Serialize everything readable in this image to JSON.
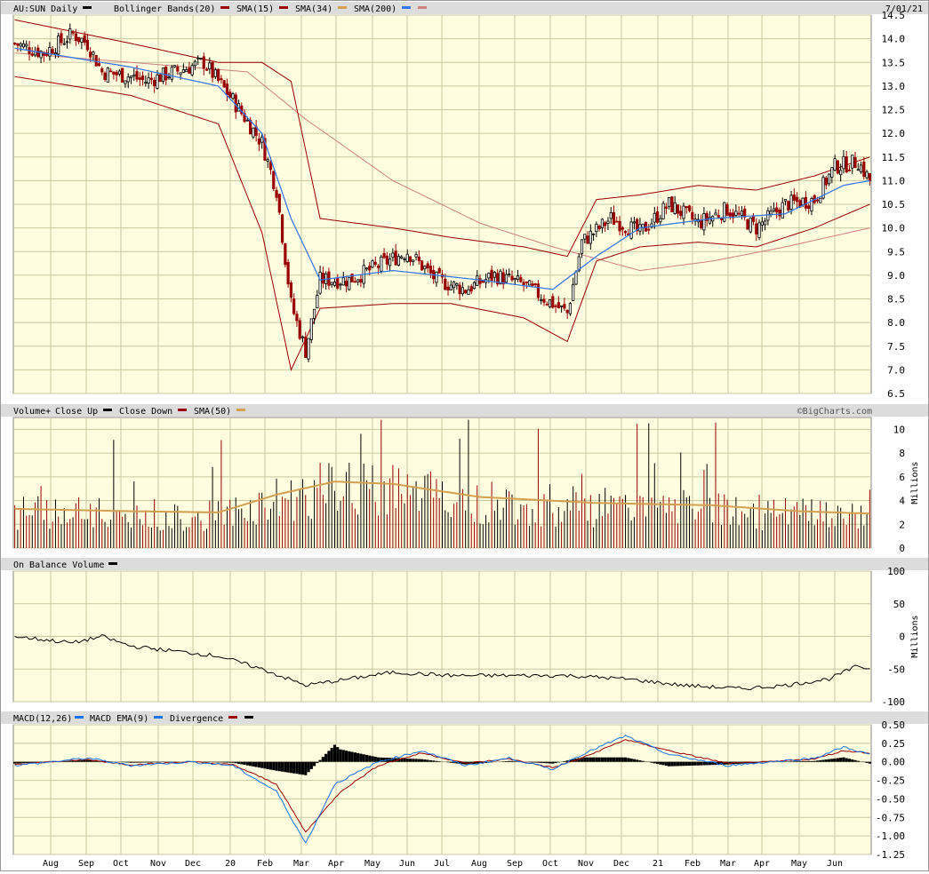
{
  "colors": {
    "plot_bg": "#fffde0",
    "header_bg": "#dcdcdc",
    "grid": "#c8c8a0",
    "up_candle": "#000000",
    "down_candle": "#990000",
    "bollinger": "#990000",
    "sma15": "#990000",
    "sma34": "#d4a050",
    "sma200": "#3377ee",
    "sma200_price": "#d08080",
    "vol_sma": "#d4a050",
    "obv": "#000000",
    "macd": "#1a73e8",
    "macd_ema": "#990000",
    "divergence": "#000000"
  },
  "price_panel": {
    "title": "AU:SUN Daily",
    "date": "7/01/21",
    "legend": [
      {
        "label": "Bollinger Bands(20)",
        "color": "#990000"
      },
      {
        "label": "SMA(15)",
        "color": "#990000"
      },
      {
        "label": "SMA(34)",
        "color": "#d4a050"
      },
      {
        "label": "SMA(200)",
        "color": "#3377ee"
      },
      {
        "label": "",
        "color": "#d08080"
      }
    ]
  },
  "volume_panel": {
    "title": "Volume+",
    "legend": [
      {
        "label": "Close Up",
        "color": "#000000"
      },
      {
        "label": "Close Down",
        "color": "#990000"
      },
      {
        "label": "SMA(50)",
        "color": "#d4a050"
      }
    ],
    "credit": "©BigCharts.com",
    "unit": "Millions"
  },
  "obv_panel": {
    "title": "On Balance Volume",
    "unit": "Millions"
  },
  "macd_panel": {
    "title": "MACD(12,26)",
    "legend": [
      {
        "label": "MACD EMA(9)",
        "color": "#1a73e8"
      },
      {
        "label": "Divergence",
        "color": "#990000"
      },
      {
        "label": "",
        "color": "#000000"
      }
    ]
  },
  "x_axis": {
    "months": [
      "Aug",
      "Sep",
      "Oct",
      "Nov",
      "Dec",
      "20",
      "Feb",
      "Mar",
      "Apr",
      "May",
      "Jun",
      "Jul",
      "Aug",
      "Sep",
      "Oct",
      "Nov",
      "Dec",
      "21",
      "Feb",
      "Mar",
      "Apr",
      "May",
      "Jun"
    ]
  },
  "chart_data": [
    {
      "type": "candlestick",
      "title": "AU:SUN Daily",
      "ylim": [
        6.5,
        14.5
      ],
      "y_ticks": [
        "14.5",
        "14.0",
        "13.5",
        "13.0",
        "12.5",
        "12.0",
        "11.5",
        "11.0",
        "10.5",
        "10.0",
        "9.5",
        "9.0",
        "8.5",
        "8.0",
        "7.5",
        "7.0",
        "6.5"
      ],
      "x_ticks": [
        "Aug",
        "Sep",
        "Oct",
        "Nov",
        "Dec",
        "20",
        "Feb",
        "Mar",
        "Apr",
        "May",
        "Jun",
        "Jul",
        "Aug",
        "Sep",
        "Oct",
        "Nov",
        "Dec",
        "21",
        "Feb",
        "Mar",
        "Apr",
        "May",
        "Jun"
      ],
      "close_keypoints": [
        [
          0,
          13.9
        ],
        [
          10,
          13.7
        ],
        [
          20,
          14.1
        ],
        [
          25,
          13.9
        ],
        [
          30,
          13.3
        ],
        [
          40,
          13.2
        ],
        [
          45,
          13.1
        ],
        [
          55,
          13.3
        ],
        [
          65,
          13.5
        ],
        [
          75,
          12.7
        ],
        [
          85,
          11.8
        ],
        [
          90,
          10.8
        ],
        [
          95,
          8.4
        ],
        [
          100,
          7.4
        ],
        [
          105,
          8.9
        ],
        [
          115,
          8.9
        ],
        [
          125,
          9.2
        ],
        [
          135,
          9.5
        ],
        [
          145,
          8.9
        ],
        [
          155,
          8.7
        ],
        [
          165,
          9.0
        ],
        [
          175,
          8.8
        ],
        [
          185,
          8.4
        ],
        [
          190,
          8.2
        ],
        [
          195,
          9.7
        ],
        [
          205,
          10.2
        ],
        [
          215,
          9.9
        ],
        [
          225,
          10.5
        ],
        [
          235,
          10.1
        ],
        [
          245,
          10.4
        ],
        [
          255,
          10.0
        ],
        [
          265,
          10.5
        ],
        [
          275,
          10.6
        ],
        [
          282,
          11.3
        ],
        [
          290,
          11.4
        ],
        [
          294,
          11.0
        ]
      ],
      "sma34_keypoints": [
        [
          0,
          13.8
        ],
        [
          40,
          13.4
        ],
        [
          70,
          13.0
        ],
        [
          85,
          12.0
        ],
        [
          95,
          10.2
        ],
        [
          105,
          8.9
        ],
        [
          130,
          9.1
        ],
        [
          160,
          8.9
        ],
        [
          185,
          8.7
        ],
        [
          200,
          9.4
        ],
        [
          215,
          10.0
        ],
        [
          240,
          10.2
        ],
        [
          265,
          10.3
        ],
        [
          285,
          10.9
        ],
        [
          294,
          11.0
        ]
      ],
      "sma200_keypoints": [
        [
          0,
          13.7
        ],
        [
          40,
          13.5
        ],
        [
          80,
          13.3
        ],
        [
          100,
          12.3
        ],
        [
          130,
          11.0
        ],
        [
          160,
          10.1
        ],
        [
          185,
          9.6
        ],
        [
          215,
          9.1
        ],
        [
          240,
          9.3
        ],
        [
          265,
          9.6
        ],
        [
          294,
          10.0
        ]
      ],
      "bollinger_upper_keypoints": [
        [
          0,
          14.4
        ],
        [
          40,
          13.9
        ],
        [
          70,
          13.5
        ],
        [
          85,
          13.5
        ],
        [
          95,
          13.1
        ],
        [
          105,
          10.2
        ],
        [
          130,
          10.0
        ],
        [
          150,
          9.8
        ],
        [
          175,
          9.6
        ],
        [
          190,
          9.4
        ],
        [
          200,
          10.6
        ],
        [
          215,
          10.7
        ],
        [
          235,
          10.9
        ],
        [
          255,
          10.8
        ],
        [
          275,
          11.1
        ],
        [
          294,
          11.5
        ]
      ],
      "bollinger_lower_keypoints": [
        [
          0,
          13.2
        ],
        [
          40,
          12.8
        ],
        [
          70,
          12.2
        ],
        [
          85,
          9.9
        ],
        [
          95,
          7.0
        ],
        [
          105,
          8.3
        ],
        [
          130,
          8.4
        ],
        [
          150,
          8.4
        ],
        [
          175,
          8.1
        ],
        [
          190,
          7.6
        ],
        [
          200,
          9.3
        ],
        [
          215,
          9.6
        ],
        [
          235,
          9.7
        ],
        [
          255,
          9.6
        ],
        [
          275,
          10.0
        ],
        [
          294,
          10.5
        ]
      ]
    },
    {
      "type": "bar",
      "title": "Volume+",
      "ylim": [
        0,
        11
      ],
      "y_ticks": [
        "10",
        "8",
        "6",
        "4",
        "2",
        "0"
      ],
      "ylabel": "Millions",
      "series": [
        {
          "name": "Close Up"
        },
        {
          "name": "Close Down"
        },
        {
          "name": "SMA(50)",
          "keypoints": [
            [
              0,
              3.3
            ],
            [
              40,
              3.1
            ],
            [
              70,
              3.0
            ],
            [
              90,
              4.5
            ],
            [
              110,
              5.6
            ],
            [
              130,
              5.4
            ],
            [
              160,
              4.3
            ],
            [
              200,
              3.8
            ],
            [
              240,
              3.6
            ],
            [
              270,
              3.1
            ],
            [
              294,
              2.9
            ]
          ]
        }
      ]
    },
    {
      "type": "line",
      "title": "On Balance Volume",
      "ylim": [
        -100,
        100
      ],
      "y_ticks": [
        "100",
        "50",
        "0",
        "-50",
        "-100"
      ],
      "ylabel": "Millions",
      "series": [
        {
          "name": "On Balance Volume",
          "keypoints": [
            [
              0,
              0
            ],
            [
              10,
              -5
            ],
            [
              20,
              -10
            ],
            [
              30,
              0
            ],
            [
              40,
              -15
            ],
            [
              50,
              -20
            ],
            [
              70,
              -30
            ],
            [
              85,
              -50
            ],
            [
              100,
              -75
            ],
            [
              115,
              -65
            ],
            [
              130,
              -55
            ],
            [
              150,
              -60
            ],
            [
              170,
              -60
            ],
            [
              190,
              -60
            ],
            [
              210,
              -65
            ],
            [
              230,
              -75
            ],
            [
              250,
              -80
            ],
            [
              265,
              -75
            ],
            [
              280,
              -65
            ],
            [
              290,
              -45
            ],
            [
              294,
              -50
            ]
          ]
        }
      ]
    },
    {
      "type": "line",
      "title": "MACD(12,26)",
      "ylim": [
        -1.25,
        0.5
      ],
      "y_ticks": [
        "0.50",
        "0.25",
        "0.00",
        "-0.25",
        "-0.50",
        "-0.75",
        "-1.00",
        "-1.25"
      ],
      "series": [
        {
          "name": "MACD(12,26)",
          "keypoints": [
            [
              0,
              -0.05
            ],
            [
              25,
              0.05
            ],
            [
              40,
              -0.05
            ],
            [
              60,
              0.0
            ],
            [
              75,
              -0.05
            ],
            [
              90,
              -0.4
            ],
            [
              100,
              -1.1
            ],
            [
              110,
              -0.3
            ],
            [
              125,
              0.0
            ],
            [
              140,
              0.15
            ],
            [
              155,
              -0.05
            ],
            [
              170,
              0.05
            ],
            [
              185,
              -0.1
            ],
            [
              195,
              0.1
            ],
            [
              210,
              0.35
            ],
            [
              225,
              0.1
            ],
            [
              245,
              -0.05
            ],
            [
              260,
              0.0
            ],
            [
              275,
              0.05
            ],
            [
              285,
              0.2
            ],
            [
              294,
              0.1
            ]
          ]
        },
        {
          "name": "MACD EMA(9)",
          "keypoints": [
            [
              0,
              -0.03
            ],
            [
              25,
              0.03
            ],
            [
              40,
              -0.04
            ],
            [
              60,
              0.0
            ],
            [
              75,
              -0.04
            ],
            [
              90,
              -0.3
            ],
            [
              100,
              -0.95
            ],
            [
              112,
              -0.4
            ],
            [
              125,
              -0.05
            ],
            [
              140,
              0.12
            ],
            [
              155,
              -0.02
            ],
            [
              170,
              0.04
            ],
            [
              185,
              -0.08
            ],
            [
              195,
              0.05
            ],
            [
              210,
              0.3
            ],
            [
              225,
              0.15
            ],
            [
              245,
              -0.02
            ],
            [
              260,
              0.0
            ],
            [
              275,
              0.04
            ],
            [
              285,
              0.15
            ],
            [
              294,
              0.12
            ]
          ]
        },
        {
          "name": "Divergence"
        }
      ]
    }
  ]
}
